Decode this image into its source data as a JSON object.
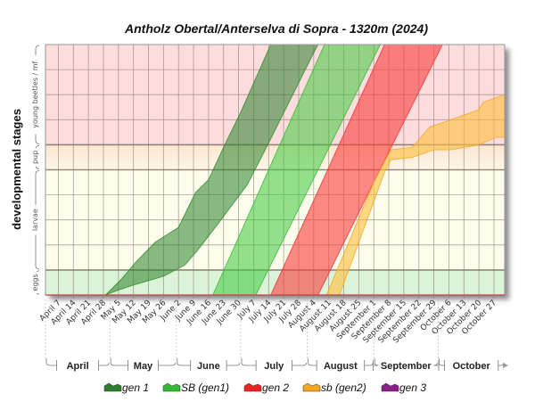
{
  "chart_data": {
    "type": "area",
    "title": "Antholz Obertal/Anterselva di Sopra - 1320m (2024)",
    "ylabel": "developmental stages",
    "xlabel": "",
    "x_unit": "days since April 1, 2024",
    "xlim": [
      0,
      214
    ],
    "ylim": [
      0,
      10
    ],
    "grid": true,
    "stages": [
      {
        "name": "eggs",
        "range": [
          0,
          1
        ],
        "color": "#dbf3d8"
      },
      {
        "name": "larvae",
        "range": [
          1,
          5
        ],
        "color": "#fdfdee"
      },
      {
        "name": "pup",
        "range": [
          5,
          6
        ],
        "color": "#fdebd8"
      },
      {
        "name": "young beetles / mf",
        "range": [
          6,
          10
        ],
        "color": "#fddcdd"
      }
    ],
    "x_ticks": [
      "April 7",
      "April 14",
      "April 21",
      "April 28",
      "May 5",
      "May 12",
      "May 19",
      "May 26",
      "June 2",
      "June 9",
      "June 16",
      "June 23",
      "June 30",
      "July 7",
      "July 14",
      "July 21",
      "July 28",
      "August 4",
      "August 11",
      "August 18",
      "August 25",
      "September 1",
      "September 8",
      "September 15",
      "September 22",
      "September 29",
      "October 6",
      "October 13",
      "October 20",
      "October 27"
    ],
    "x_tick_days": [
      6,
      13,
      20,
      27,
      34,
      41,
      48,
      55,
      62,
      69,
      76,
      83,
      90,
      97,
      104,
      111,
      118,
      125,
      132,
      139,
      146,
      153,
      160,
      167,
      174,
      181,
      188,
      195,
      202,
      209
    ],
    "months": [
      {
        "name": "April",
        "start": 0,
        "end": 30
      },
      {
        "name": "May",
        "start": 30,
        "end": 61
      },
      {
        "name": "June",
        "start": 61,
        "end": 91
      },
      {
        "name": "July",
        "start": 91,
        "end": 122
      },
      {
        "name": "August",
        "start": 122,
        "end": 153
      },
      {
        "name": "September",
        "start": 153,
        "end": 183
      },
      {
        "name": "October",
        "start": 183,
        "end": 214
      }
    ],
    "series": [
      {
        "name": "gen 1",
        "color": "#2e8b2e",
        "fill": "rgba(40,130,40,0.55)",
        "upper": [
          [
            28,
            0
          ],
          [
            35,
            0.6
          ],
          [
            42,
            1.3
          ],
          [
            51,
            2.1
          ],
          [
            62,
            2.7
          ],
          [
            70,
            4.1
          ],
          [
            76,
            4.6
          ],
          [
            83,
            5.9
          ],
          [
            91,
            7.3
          ],
          [
            105,
            10
          ]
        ],
        "lower": [
          [
            28,
            0
          ],
          [
            34,
            0.2
          ],
          [
            41,
            0.4
          ],
          [
            55,
            0.75
          ],
          [
            65,
            1.2
          ],
          [
            71,
            1.8
          ],
          [
            80,
            2.8
          ],
          [
            94,
            4.4
          ],
          [
            103,
            5.9
          ],
          [
            124,
            9.5
          ],
          [
            127,
            10
          ]
        ]
      },
      {
        "name": "SB (gen1)",
        "color": "#33bb33",
        "fill": "rgba(60,200,60,0.55)",
        "upper": [
          [
            78,
            0
          ],
          [
            130,
            10
          ]
        ],
        "lower": [
          [
            98,
            0
          ],
          [
            156,
            10
          ]
        ]
      },
      {
        "name": "gen 2",
        "color": "#ee3333",
        "fill": "rgba(250,60,60,0.6)",
        "upper": [
          [
            105,
            0
          ],
          [
            158,
            10
          ]
        ],
        "lower": [
          [
            127,
            0
          ],
          [
            153,
            4.5
          ],
          [
            185,
            10
          ],
          [
            214,
            10
          ]
        ]
      },
      {
        "name": "sb (gen2)",
        "color": "#f5a623",
        "fill": "rgba(255,190,60,0.6)",
        "upper": [
          [
            131,
            0
          ],
          [
            153,
            4.5
          ],
          [
            161,
            5.8
          ],
          [
            171,
            5.9
          ],
          [
            179,
            6.7
          ],
          [
            189,
            7.0
          ],
          [
            202,
            7.4
          ],
          [
            204,
            7.7
          ],
          [
            214,
            8.0
          ]
        ],
        "lower": [
          [
            137,
            0
          ],
          [
            158,
            4.9
          ],
          [
            161,
            5.4
          ],
          [
            171,
            5.5
          ],
          [
            181,
            5.8
          ],
          [
            189,
            5.8
          ],
          [
            202,
            6.0
          ],
          [
            210,
            6.3
          ],
          [
            214,
            6.3
          ]
        ]
      },
      {
        "name": "gen 3",
        "color": "#882288",
        "fill": "rgba(140,40,140,0.6)",
        "upper": [],
        "lower": []
      }
    ],
    "legend_position": "bottom"
  }
}
